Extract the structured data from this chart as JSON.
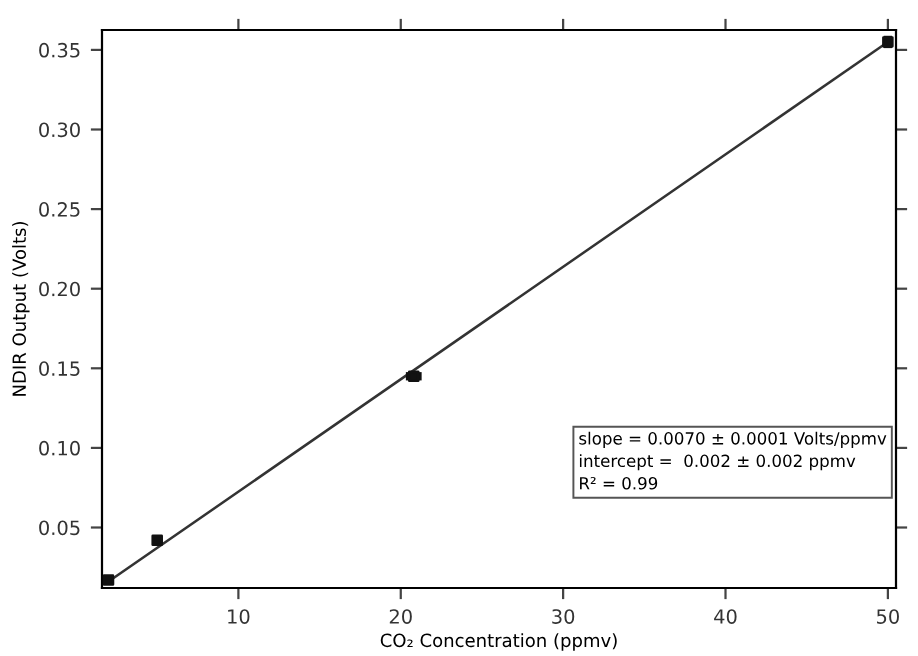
{
  "chart_data": {
    "type": "scatter",
    "xlabel": "CO₂ Concentration (ppmv)",
    "ylabel": "NDIR Output (Volts)",
    "xlim": [
      1.6,
      50.5
    ],
    "xticks": [
      10,
      20,
      30,
      40,
      50
    ],
    "ylim": [
      0.012,
      0.3625
    ],
    "yticks": [
      0.05,
      {
        "value": 0.1,
        "label": "0.10"
      },
      0.15,
      {
        "value": 0.2,
        "label": "0.20"
      },
      0.25,
      {
        "value": 0.3,
        "label": "0.30"
      },
      0.35
    ],
    "tick_labels": "xy",
    "grid": false,
    "legend": false,
    "series": [
      {
        "x": [
          2,
          5,
          20.8,
          50
        ],
        "values": [
          0.017,
          0.042,
          0.145,
          0.355
        ],
        "color": "#111111",
        "marker": "square",
        "errors": [
          0.002,
          0.002,
          0.002,
          0.003
        ],
        "xerrors": [
          0.2,
          0.2,
          0.4,
          0.2
        ]
      },
      {
        "type": "line",
        "x": [
          2,
          50
        ],
        "values": [
          0.016,
          0.355
        ],
        "color": "#333333",
        "marker": "none",
        "line_style": "solid"
      }
    ],
    "annotations": [
      "slope = 0.0070 ± 0.0001 Volts/ppmv\nintercept =  0.002 ± 0.002 ppmv\nR² = 0.99"
    ]
  }
}
